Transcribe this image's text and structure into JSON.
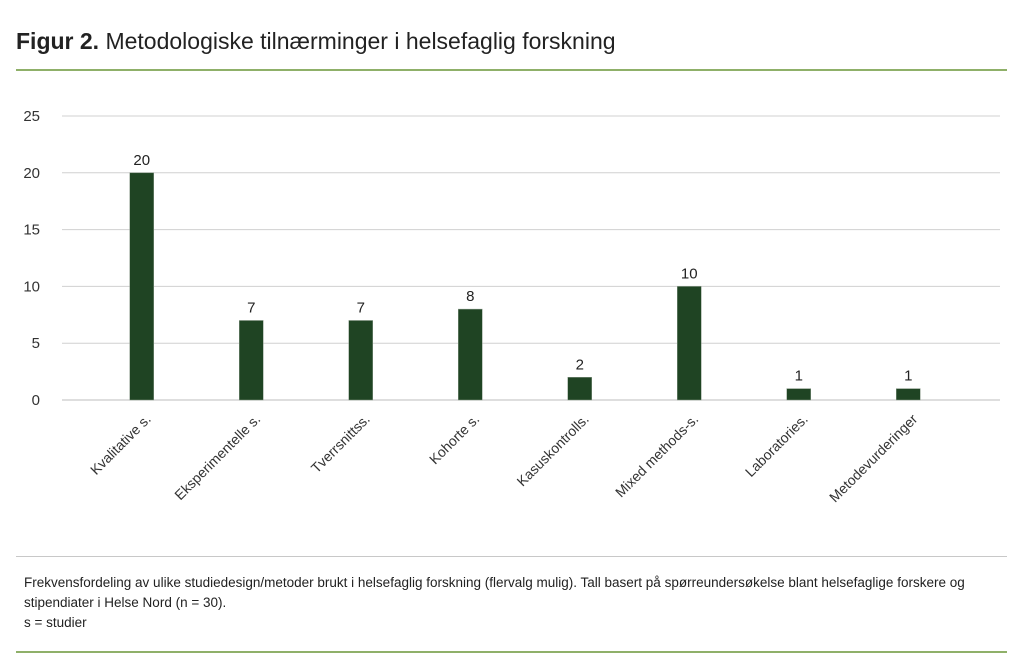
{
  "header": {
    "figure_label": "Figur 2.",
    "title": "Metodologiske tilnærminger i helsefaglig forskning"
  },
  "caption": {
    "line1": "Frekvensfordeling av ulike studiedesign/metoder brukt i helsefaglig forskning (flervalg mulig). Tall basert på spørreundersøkelse blant helsefaglige forskere og stipendiater i Helse Nord (n = 30).",
    "line2": "s = studier"
  },
  "colors": {
    "bar": "#1f4423",
    "accent_rule": "#8fb069",
    "grid": "#d0d0d0"
  },
  "chart_data": {
    "type": "bar",
    "categories": [
      "Kvalitative s.",
      "Eksperimentelle s.",
      "Tverrsnittss.",
      "Kohorte s.",
      "Kasuskontrolls.",
      "Mixed methods-s.",
      "Laboratories.",
      "Metodevurderinger"
    ],
    "values": [
      20,
      7,
      7,
      8,
      2,
      10,
      1,
      1
    ],
    "ylim": [
      0,
      25
    ],
    "yticks": [
      0,
      5,
      10,
      15,
      20,
      25
    ],
    "grid": true,
    "data_labels": true
  }
}
